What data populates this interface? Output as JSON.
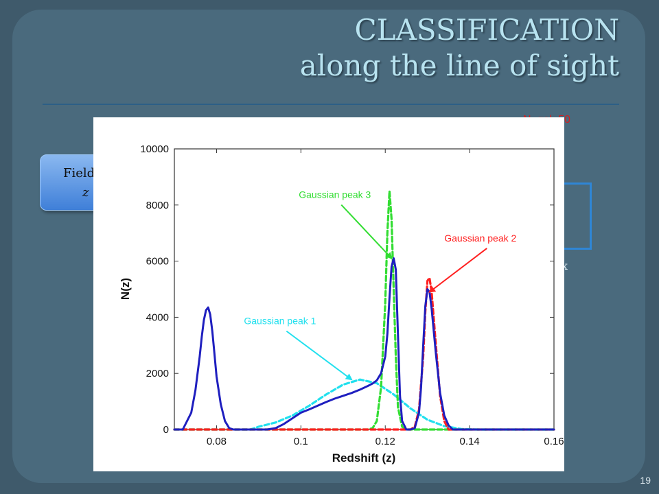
{
  "slide": {
    "title_line1": "CLASSIFICATION",
    "title_line2": "along the line of sight",
    "red_text": "N_gal=50",
    "field_label": "Field",
    "field_z": "z",
    "x_glyph": "x",
    "page_number": "19"
  },
  "colors": {
    "background": "#3f5a6b",
    "frame": "#4a6a7d",
    "title": "#b8e3f0",
    "accent": "#2c5f86"
  },
  "chart_data": {
    "type": "line",
    "xlabel": "Redshift (z)",
    "ylabel": "N(z)",
    "xlim": [
      0.07,
      0.16
    ],
    "ylim": [
      0,
      10000
    ],
    "xticks": [
      0.08,
      0.1,
      0.12,
      0.14,
      0.16
    ],
    "xtick_labels": [
      "0.08",
      "0.1",
      "0.12",
      "0.14",
      "0.16"
    ],
    "yticks": [
      0,
      2000,
      4000,
      6000,
      8000,
      10000
    ],
    "ytick_labels": [
      "0",
      "2000",
      "4000",
      "6000",
      "8000",
      "10000"
    ],
    "series": [
      {
        "color": "#1f1fbf",
        "style": "solid",
        "x": [
          0.07,
          0.072,
          0.074,
          0.075,
          0.076,
          0.0765,
          0.077,
          0.0775,
          0.078,
          0.0785,
          0.079,
          0.0795,
          0.08,
          0.081,
          0.082,
          0.083,
          0.084,
          0.086,
          0.088,
          0.09,
          0.092,
          0.094,
          0.096,
          0.098,
          0.1,
          0.102,
          0.104,
          0.106,
          0.108,
          0.11,
          0.112,
          0.114,
          0.116,
          0.117,
          0.118,
          0.119,
          0.12,
          0.1205,
          0.121,
          0.1215,
          0.122,
          0.1225,
          0.123,
          0.1235,
          0.124,
          0.125,
          0.126,
          0.127,
          0.128,
          0.1285,
          0.129,
          0.1295,
          0.13,
          0.1305,
          0.131,
          0.132,
          0.133,
          0.134,
          0.135,
          0.136,
          0.138,
          0.145,
          0.15,
          0.16
        ],
        "y": [
          0,
          0,
          600,
          1400,
          2600,
          3300,
          3900,
          4250,
          4350,
          4100,
          3500,
          2700,
          1900,
          900,
          300,
          50,
          0,
          0,
          0,
          0,
          0,
          50,
          200,
          400,
          600,
          720,
          850,
          980,
          1100,
          1200,
          1300,
          1420,
          1560,
          1640,
          1750,
          2000,
          2600,
          3400,
          4700,
          5800,
          6100,
          5700,
          3400,
          1200,
          300,
          0,
          0,
          50,
          600,
          1500,
          3000,
          4400,
          5000,
          4900,
          4300,
          2700,
          1300,
          500,
          150,
          0,
          0,
          0,
          0,
          0
        ]
      },
      {
        "color": "#ff2020",
        "style": "dashed",
        "x": [
          0.07,
          0.126,
          0.127,
          0.128,
          0.129,
          0.1295,
          0.13,
          0.1305,
          0.131,
          0.132,
          0.133,
          0.134,
          0.135,
          0.16
        ],
        "y": [
          0,
          0,
          100,
          700,
          2600,
          4200,
          5300,
          5400,
          4900,
          3000,
          1200,
          300,
          0,
          0
        ]
      },
      {
        "color": "#33dd33",
        "style": "dashed",
        "x": [
          0.07,
          0.116,
          0.117,
          0.118,
          0.119,
          0.12,
          0.1205,
          0.121,
          0.1215,
          0.122,
          0.1225,
          0.123,
          0.124,
          0.125,
          0.126,
          0.16
        ],
        "y": [
          0,
          0,
          50,
          300,
          1500,
          4500,
          7000,
          8500,
          7500,
          5000,
          2600,
          800,
          100,
          0,
          0,
          0
        ]
      },
      {
        "color": "#22e0ee",
        "style": "dashed",
        "x": [
          0.07,
          0.088,
          0.09,
          0.094,
          0.098,
          0.102,
          0.106,
          0.11,
          0.114,
          0.118,
          0.122,
          0.126,
          0.13,
          0.134,
          0.138,
          0.142,
          0.16
        ],
        "y": [
          0,
          0,
          100,
          250,
          500,
          850,
          1250,
          1600,
          1780,
          1650,
          1250,
          750,
          350,
          120,
          20,
          0,
          0
        ]
      }
    ],
    "annotations": [
      {
        "text": "Gaussian peak 3",
        "color": "#33dd33",
        "x": 0.0995,
        "y": 8250,
        "arrow_to": [
          0.1215,
          6100
        ]
      },
      {
        "text": "Gaussian peak 2",
        "color": "#ff2020",
        "x": 0.134,
        "y": 6700,
        "arrow_to": [
          0.1305,
          4900
        ]
      },
      {
        "text": "Gaussian peak 1",
        "color": "#22e0ee",
        "x": 0.0865,
        "y": 3750,
        "arrow_to": [
          0.112,
          1780
        ]
      }
    ]
  }
}
